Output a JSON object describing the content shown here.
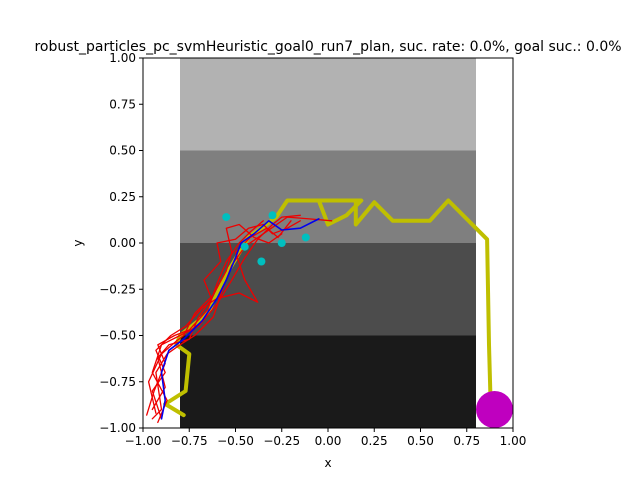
{
  "chart_data": {
    "type": "line",
    "title": "robust_particles_pc_svmHeuristic_goal0_run7_plan, suc. rate: 0.0%, goal suc.: 0.0%",
    "xlabel": "x",
    "ylabel": "y",
    "xlim": [
      -1.0,
      1.0
    ],
    "ylim": [
      -1.0,
      1.0
    ],
    "xticks": [
      -1.0,
      -0.75,
      -0.5,
      -0.25,
      0.0,
      0.25,
      0.5,
      0.75,
      1.0
    ],
    "yticks": [
      -1.0,
      -0.75,
      -0.5,
      -0.25,
      0.0,
      0.25,
      0.5,
      0.75,
      1.0
    ],
    "xtick_labels": [
      "−1.00",
      "−0.75",
      "−0.50",
      "−0.25",
      "0.00",
      "0.25",
      "0.50",
      "0.75",
      "1.00"
    ],
    "ytick_labels": [
      "−1.00",
      "−0.75",
      "−0.50",
      "−0.25",
      "0.00",
      "0.25",
      "0.50",
      "0.75",
      "1.00"
    ],
    "grid": false,
    "background_bands": [
      {
        "x": [
          -0.8,
          0.8
        ],
        "y": [
          0.5,
          1.0
        ],
        "color": "#b2b2b2"
      },
      {
        "x": [
          -0.8,
          0.8
        ],
        "y": [
          0.0,
          0.5
        ],
        "color": "#7f7f7f"
      },
      {
        "x": [
          -0.8,
          0.8
        ],
        "y": [
          -0.5,
          0.0
        ],
        "color": "#4c4c4c"
      },
      {
        "x": [
          -0.8,
          0.8
        ],
        "y": [
          -1.0,
          -0.5
        ],
        "color": "#1a1a1a"
      }
    ],
    "goal": {
      "x": 0.9,
      "y": -0.9,
      "radius": 0.1,
      "color": "#bf00bf"
    },
    "series": [
      {
        "color": "#bfbf00",
        "points": [
          [
            0.88,
            -0.9
          ],
          [
            0.87,
            -0.55
          ],
          [
            0.86,
            0.02
          ],
          [
            0.65,
            0.23
          ],
          [
            0.55,
            0.12
          ],
          [
            0.35,
            0.12
          ],
          [
            0.25,
            0.22
          ],
          [
            0.15,
            0.1
          ],
          [
            0.15,
            0.23
          ],
          [
            -0.05,
            0.23
          ],
          [
            0.0,
            0.1
          ],
          [
            0.1,
            0.15
          ],
          [
            0.18,
            0.23
          ],
          [
            -0.22,
            0.23
          ],
          [
            -0.28,
            0.14
          ],
          [
            -0.43,
            0.03
          ],
          [
            -0.55,
            -0.17
          ],
          [
            -0.65,
            -0.38
          ],
          [
            -0.8,
            -0.5
          ],
          [
            -0.82,
            -0.55
          ],
          [
            -0.75,
            -0.6
          ],
          [
            -0.77,
            -0.8
          ],
          [
            -0.88,
            -0.87
          ],
          [
            -0.78,
            -0.93
          ]
        ]
      },
      {
        "color": "#ee0000",
        "points": [
          [
            -0.95,
            -0.95
          ],
          [
            -0.9,
            -0.9
          ],
          [
            -0.93,
            -0.7
          ],
          [
            -0.87,
            -0.6
          ],
          [
            -0.8,
            -0.55
          ],
          [
            -0.72,
            -0.5
          ],
          [
            -0.62,
            -0.4
          ],
          [
            -0.57,
            -0.25
          ],
          [
            -0.52,
            -0.12
          ],
          [
            -0.45,
            -0.02
          ],
          [
            -0.35,
            0.05
          ],
          [
            -0.22,
            0.14
          ],
          [
            -0.1,
            0.13
          ],
          [
            0.02,
            0.12
          ]
        ]
      },
      {
        "color": "#ee0000",
        "points": [
          [
            -0.92,
            -0.97
          ],
          [
            -0.87,
            -0.85
          ],
          [
            -0.95,
            -0.7
          ],
          [
            -0.9,
            -0.55
          ],
          [
            -0.8,
            -0.5
          ],
          [
            -0.7,
            -0.45
          ],
          [
            -0.6,
            -0.33
          ],
          [
            -0.52,
            -0.2
          ],
          [
            -0.45,
            -0.08
          ],
          [
            -0.38,
            0.02
          ],
          [
            -0.3,
            0.1
          ],
          [
            -0.25,
            0.14
          ],
          [
            -0.15,
            0.15
          ]
        ]
      },
      {
        "color": "#ee0000",
        "points": [
          [
            -0.98,
            -0.93
          ],
          [
            -0.94,
            -0.8
          ],
          [
            -0.88,
            -0.65
          ],
          [
            -0.92,
            -0.55
          ],
          [
            -0.83,
            -0.5
          ],
          [
            -0.75,
            -0.47
          ],
          [
            -0.65,
            -0.36
          ],
          [
            -0.6,
            -0.22
          ],
          [
            -0.55,
            -0.1
          ],
          [
            -0.48,
            0.0
          ],
          [
            -0.42,
            0.06
          ],
          [
            -0.35,
            0.12
          ]
        ]
      },
      {
        "color": "#ee0000",
        "points": [
          [
            -0.9,
            -0.95
          ],
          [
            -0.95,
            -0.8
          ],
          [
            -0.88,
            -0.7
          ],
          [
            -0.93,
            -0.58
          ],
          [
            -0.85,
            -0.5
          ],
          [
            -0.77,
            -0.45
          ],
          [
            -0.68,
            -0.35
          ],
          [
            -0.6,
            -0.3
          ],
          [
            -0.48,
            -0.27
          ],
          [
            -0.38,
            -0.32
          ],
          [
            -0.45,
            -0.2
          ],
          [
            -0.5,
            -0.05
          ],
          [
            -0.42,
            0.03
          ],
          [
            -0.33,
            0.08
          ],
          [
            -0.27,
            0.03
          ],
          [
            -0.2,
            0.12
          ]
        ]
      },
      {
        "color": "#ee0000",
        "points": [
          [
            -0.95,
            -0.9
          ],
          [
            -0.88,
            -0.78
          ],
          [
            -0.92,
            -0.62
          ],
          [
            -0.86,
            -0.55
          ],
          [
            -0.75,
            -0.52
          ],
          [
            -0.7,
            -0.4
          ],
          [
            -0.63,
            -0.3
          ],
          [
            -0.67,
            -0.2
          ],
          [
            -0.58,
            -0.1
          ],
          [
            -0.6,
            0.0
          ],
          [
            -0.5,
            0.02
          ],
          [
            -0.43,
            0.08
          ],
          [
            -0.35,
            0.1
          ],
          [
            -0.3,
            0.05
          ],
          [
            -0.22,
            0.08
          ],
          [
            -0.15,
            0.12
          ]
        ]
      },
      {
        "color": "#ee0000",
        "points": [
          [
            -0.93,
            -0.92
          ],
          [
            -0.97,
            -0.75
          ],
          [
            -0.9,
            -0.6
          ],
          [
            -0.82,
            -0.53
          ],
          [
            -0.78,
            -0.5
          ],
          [
            -0.72,
            -0.38
          ],
          [
            -0.62,
            -0.28
          ],
          [
            -0.55,
            -0.15
          ],
          [
            -0.52,
            -0.05
          ],
          [
            -0.55,
            0.08
          ],
          [
            -0.48,
            0.1
          ],
          [
            -0.4,
            0.03
          ],
          [
            -0.32,
            0.0
          ],
          [
            -0.25,
            0.05
          ]
        ]
      },
      {
        "color": "#0000ee",
        "points": [
          [
            -0.9,
            -0.95
          ],
          [
            -0.88,
            -0.85
          ],
          [
            -0.9,
            -0.7
          ],
          [
            -0.86,
            -0.58
          ],
          [
            -0.78,
            -0.52
          ],
          [
            -0.68,
            -0.42
          ],
          [
            -0.6,
            -0.3
          ],
          [
            -0.55,
            -0.2
          ],
          [
            -0.5,
            -0.08
          ],
          [
            -0.47,
            0.0
          ],
          [
            -0.4,
            0.05
          ],
          [
            -0.32,
            0.12
          ],
          [
            -0.25,
            0.07
          ],
          [
            -0.15,
            0.08
          ],
          [
            -0.05,
            0.13
          ]
        ]
      }
    ],
    "particles": {
      "color": "#00bfbf",
      "points": [
        [
          -0.55,
          0.14
        ],
        [
          -0.36,
          -0.1
        ],
        [
          -0.25,
          0.0
        ],
        [
          -0.12,
          0.03
        ],
        [
          -0.45,
          -0.02
        ],
        [
          -0.3,
          0.15
        ]
      ]
    }
  }
}
